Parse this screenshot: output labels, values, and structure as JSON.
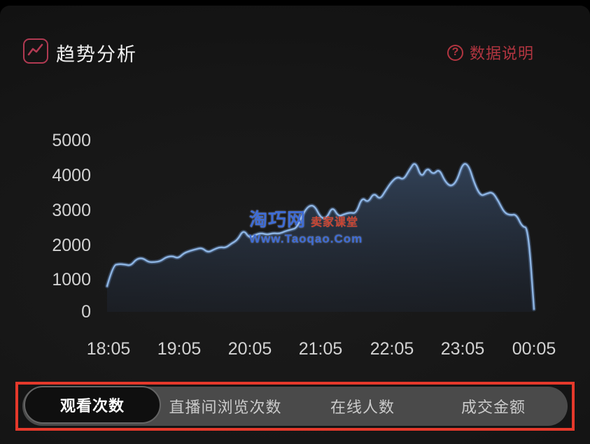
{
  "header": {
    "title": "趋势分析",
    "help_label": "数据说明",
    "help_icon_glyph": "?",
    "icon_color": "#b13a52",
    "help_color": "#b23540"
  },
  "watermark": {
    "site_name": "淘巧网",
    "site_tag": "卖家课堂",
    "site_url": "Www.Taoqao.Com",
    "name_color": "#3e6cd6",
    "tag_color": "#c94432"
  },
  "chart_data": {
    "type": "area",
    "title": "趋势分析 - 观看次数",
    "xlabel": "",
    "ylabel": "",
    "x_tick_labels": [
      "18:05",
      "19:05",
      "20:05",
      "21:05",
      "22:05",
      "23:05",
      "00:05"
    ],
    "y_tick_labels": [
      "5000",
      "4000",
      "3000",
      "2000",
      "1000",
      "0"
    ],
    "y_ticks": [
      0,
      1000,
      2000,
      3000,
      4000,
      5000
    ],
    "ylim": [
      0,
      5000
    ],
    "grid": false,
    "legend": false,
    "line_color": "#8db4e2",
    "line_halo_color": "rgba(110,150,205,0.35)",
    "area_color_top": "rgba(86,124,176,0.42)",
    "area_color_bottom": "rgba(36,52,80,0.20)",
    "tick_color": "#d2d2d2",
    "series": [
      {
        "name": "观看次数",
        "start": "18:05",
        "end": "00:05",
        "sample_interval_minutes": 5,
        "values": [
          750,
          1350,
          1400,
          1380,
          1350,
          1550,
          1570,
          1450,
          1450,
          1480,
          1600,
          1630,
          1560,
          1720,
          1780,
          1830,
          1870,
          1730,
          1820,
          1890,
          1870,
          2000,
          2100,
          2400,
          2150,
          2250,
          2300,
          2250,
          2300,
          2280,
          2350,
          2400,
          2450,
          2850,
          3100,
          3100,
          2750,
          2720,
          3080,
          2780,
          2850,
          2900,
          2870,
          3350,
          3180,
          3480,
          3270,
          3550,
          3800,
          3950,
          3850,
          4150,
          4400,
          3900,
          4220,
          4000,
          4180,
          3800,
          3650,
          3820,
          4350,
          4280,
          3720,
          3380,
          3450,
          3500,
          3230,
          2890,
          2820,
          2850,
          2480,
          2460,
          80
        ]
      }
    ]
  },
  "tabs": {
    "annotation_color": "#e5392b",
    "items": [
      {
        "label": "观看次数",
        "selected": true
      },
      {
        "label": "直播间浏览次数",
        "selected": false
      },
      {
        "label": "在线人数",
        "selected": false
      },
      {
        "label": "成交金额",
        "selected": false
      }
    ]
  }
}
